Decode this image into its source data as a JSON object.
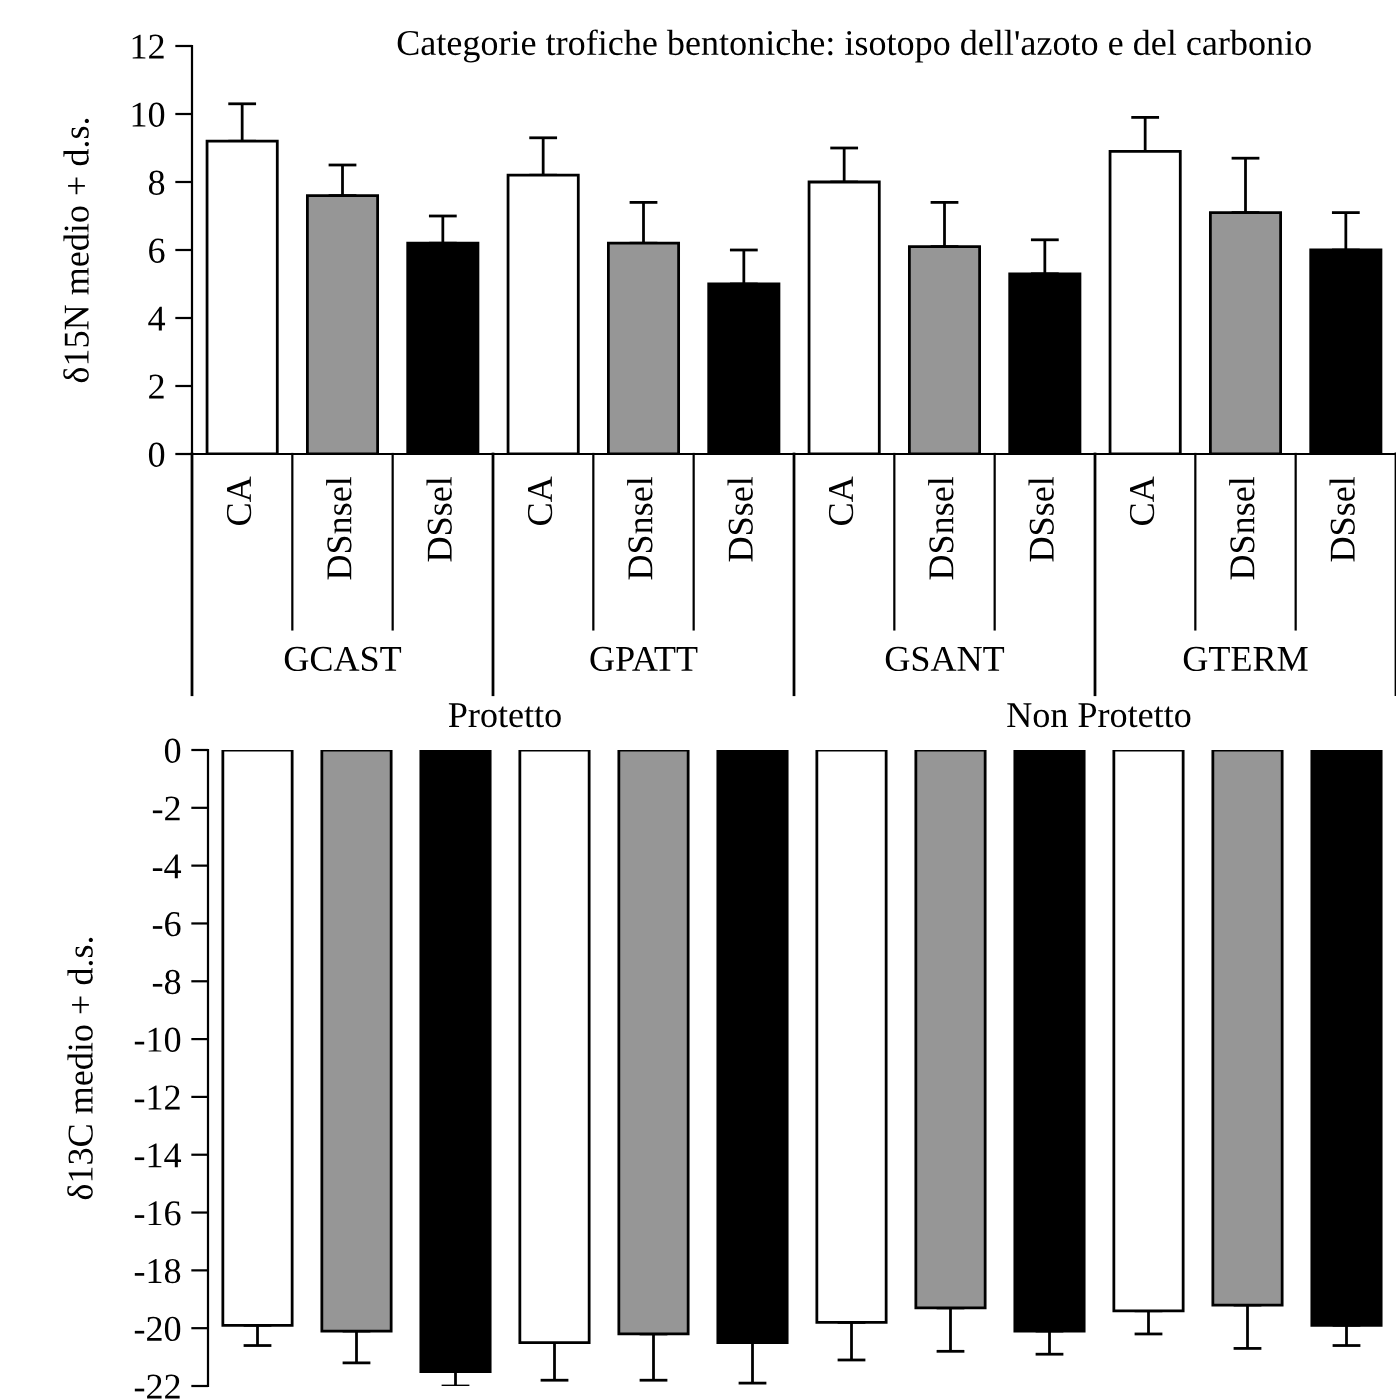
{
  "chart_data": [
    {
      "type": "bar",
      "title": "Categorie trofiche bentoniche: isotopo dell'azoto e del carbonio",
      "ylabel": "δ15N medio + d.s.",
      "categories": [
        "CA",
        "DSnsel",
        "DSsel",
        "CA",
        "DSnsel",
        "DSsel",
        "CA",
        "DSnsel",
        "DSsel",
        "CA",
        "DSnsel",
        "DSsel"
      ],
      "values": [
        9.2,
        7.6,
        6.2,
        8.2,
        6.2,
        5.0,
        8.0,
        6.1,
        5.3,
        8.9,
        7.1,
        6.0
      ],
      "errors": [
        [
          9.2,
          10.3
        ],
        [
          7.6,
          8.5
        ],
        [
          6.2,
          7.0
        ],
        [
          8.2,
          9.3
        ],
        [
          6.2,
          7.4
        ],
        [
          5.0,
          6.0
        ],
        [
          8.0,
          9.0
        ],
        [
          6.1,
          7.4
        ],
        [
          5.3,
          6.3
        ],
        [
          8.9,
          9.9
        ],
        [
          7.1,
          8.7
        ],
        [
          6.0,
          7.1
        ]
      ],
      "colors": [
        "#ffffff",
        "#969696",
        "#000000",
        "#ffffff",
        "#969696",
        "#000000",
        "#ffffff",
        "#969696",
        "#000000",
        "#ffffff",
        "#969696",
        "#000000"
      ],
      "ylim": [
        0,
        12
      ],
      "yticks": [
        0,
        2,
        4,
        6,
        8,
        10,
        12
      ],
      "grid": false,
      "legend": false,
      "annotations": [
        "GCAST",
        "GPATT",
        "GSANT",
        "GTERM"
      ]
    },
    {
      "type": "bar",
      "ylabel": "δ13C medio + d.s.",
      "categories": [
        null,
        null,
        null,
        null,
        null,
        null,
        null,
        null,
        null,
        null,
        null,
        null
      ],
      "values": [
        -19.9,
        -20.1,
        -21.5,
        -20.5,
        -20.2,
        -20.5,
        -19.8,
        -19.3,
        -20.1,
        -19.4,
        -19.2,
        -19.9
      ],
      "errors": [
        [
          -20.6,
          -19.9
        ],
        [
          -21.2,
          -20.1
        ],
        [
          -22.0,
          -21.5
        ],
        [
          -21.8,
          -20.5
        ],
        [
          -21.8,
          -20.2
        ],
        [
          -21.9,
          -20.5
        ],
        [
          -21.1,
          -19.8
        ],
        [
          -20.8,
          -19.3
        ],
        [
          -20.9,
          -20.1
        ],
        [
          -20.2,
          -19.4
        ],
        [
          -20.7,
          -19.2
        ],
        [
          -20.6,
          -19.9
        ]
      ],
      "colors": [
        "#ffffff",
        "#969696",
        "#000000",
        "#ffffff",
        "#969696",
        "#000000",
        "#ffffff",
        "#969696",
        "#000000",
        "#ffffff",
        "#969696",
        "#000000"
      ],
      "ylim": [
        -22,
        0
      ],
      "yticks": [
        0,
        -2,
        -4,
        -6,
        -8,
        -10,
        -12,
        -14,
        -16,
        -18,
        -20,
        -22
      ],
      "grid": false,
      "legend": false,
      "tick_labels": "y",
      "annotations": [
        "Protetto",
        "Non Protetto"
      ]
    }
  ]
}
